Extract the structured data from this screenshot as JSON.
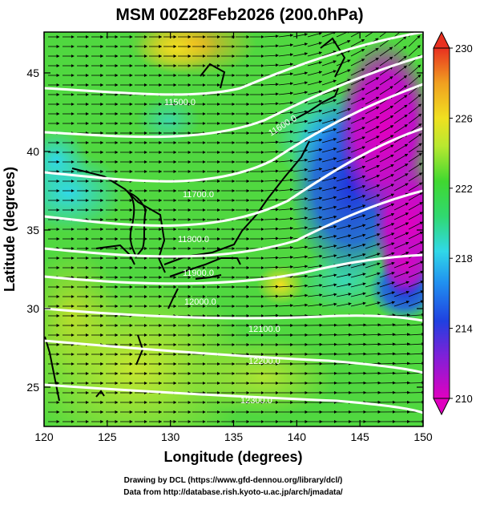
{
  "title": "MSM 00Z28Feb2026 (200.0hPa)",
  "axes": {
    "xlabel": "Longitude (degrees)",
    "ylabel": "Latitude  (degrees)",
    "x_ticks": [
      "120",
      "125",
      "130",
      "135",
      "140",
      "145",
      "150"
    ],
    "y_ticks": [
      "25",
      "30",
      "35",
      "40",
      "45"
    ],
    "x_range": [
      120,
      150
    ],
    "y_range": [
      22.5,
      47.6
    ]
  },
  "colorbar": {
    "labels": [
      "230",
      "226",
      "222",
      "218",
      "214",
      "210"
    ],
    "range": [
      210,
      230
    ],
    "extend": "both"
  },
  "contours": {
    "labels": [
      "11500.0",
      "11600.0",
      "11700.0",
      "11800.0",
      "11900.0",
      "12000.0",
      "12100.0",
      "12200.0",
      "12300.0"
    ],
    "color": "#ffffff"
  },
  "field_colors": {
    "magenta": "#e000c0",
    "blue": "#2040e0",
    "cyan": "#30d8e8",
    "green": "#30d840",
    "yellow_green": "#b8e830",
    "yellow": "#f0e020",
    "orange": "#f0a020"
  },
  "credits": {
    "line1": "Drawing by DCL (https://www.gfd-dennou.org/library/dcl/)",
    "line2": "Data from http://database.rish.kyoto-u.ac.jp/arch/jmadata/"
  }
}
